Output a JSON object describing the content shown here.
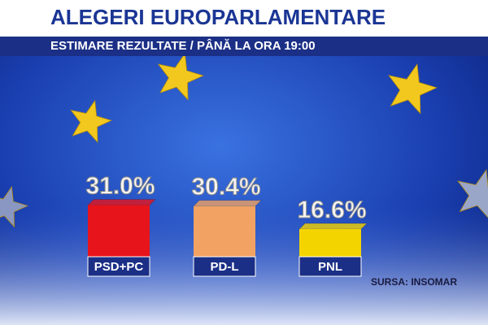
{
  "chart_data": {
    "type": "bar",
    "title": "ALEGERI EUROPARLAMENTARE",
    "subtitle": "ESTIMARE REZULTATE / PÂNĂ LA ORA 19:00",
    "categories": [
      "PSD+PC",
      "PD-L",
      "PNL"
    ],
    "values": [
      31,
      30.4,
      16.6
    ],
    "value_labels": [
      "31.0%",
      "30.4%",
      "16.6%"
    ],
    "colors": [
      "#e8141b",
      "#f2a263",
      "#f4d400"
    ],
    "source": "SURSA: INSOMAR"
  }
}
